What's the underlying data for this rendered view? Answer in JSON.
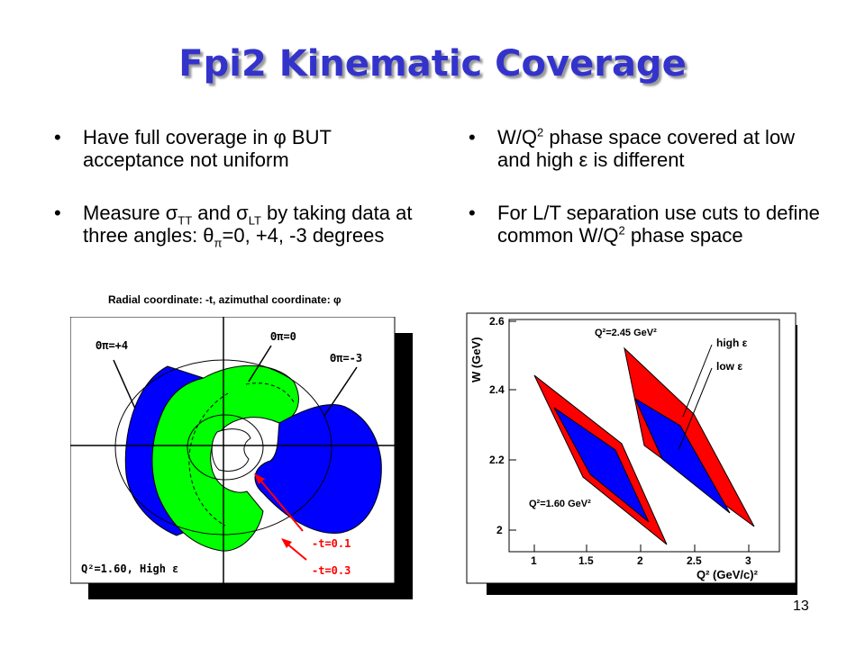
{
  "slide": {
    "title": "Fpi2 Kinematic Coverage",
    "page_number": "13"
  },
  "left_column": {
    "bullet_symbol": "•",
    "bullet1": {
      "text": "Have full coverage in φ BUT acceptance not uniform"
    },
    "bullet2": {
      "part1": "Measure σ",
      "sub1": "TT",
      "part2": " and σ",
      "sub2": "LT",
      "part3": " by taking data at three angles: θ",
      "sub3": "π",
      "part4": "=0, +4, -3 degrees"
    }
  },
  "right_column": {
    "bullet_symbol": "•",
    "bullet1": {
      "part1": "W/Q",
      "sup1": "2",
      "part2": " phase space covered at low and high ε is different"
    },
    "bullet2": {
      "part1": "For L/T separation use cuts to define common W/Q",
      "sup1": "2",
      "part2": " phase space"
    }
  },
  "left_plot": {
    "caption": "Radial coordinate: -t, azimuthal coordinate: φ",
    "label_plus4": "Θπ=+4",
    "label_zero": "Θπ=0",
    "label_minus3": "Θπ=-3",
    "label_t01": "-t=0.1",
    "label_t03": "-t=0.3",
    "label_q2": "Q²=1.60, High ε",
    "colors": {
      "blue": "#0000ff",
      "green": "#00ff00",
      "arrow": "#ff0000"
    }
  },
  "right_plot": {
    "ylabel": "W (GeV)",
    "xlabel": "Q² (GeV/c)²",
    "label_q2_high": "Q²=2.45 GeV²",
    "label_q2_low": "Q²=1.60 GeV²",
    "legend_high": "high ε",
    "legend_low": "low ε",
    "y_ticks": [
      "2.6",
      "2.4",
      "2.2",
      "2"
    ],
    "x_ticks": [
      "1",
      "1.5",
      "2",
      "2.5",
      "3"
    ],
    "colors": {
      "high_eps": "#ff0000",
      "low_eps": "#0000ff"
    }
  }
}
